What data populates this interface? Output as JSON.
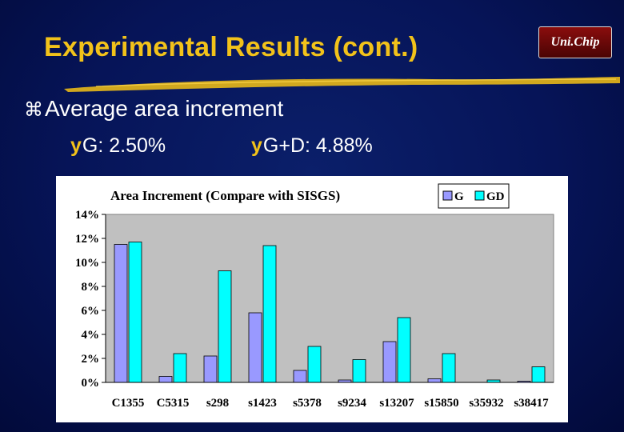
{
  "slide": {
    "title": "Experimental Results (cont.)",
    "logo_text": "Uni.Chip",
    "bullet_main": "Average area increment",
    "bullet_main_marker": "⌘",
    "sub_bullets": [
      {
        "marker": "y",
        "text": "G: 2.50%"
      },
      {
        "marker": "y",
        "text": "G+D: 4.88%"
      }
    ]
  },
  "colors": {
    "title": "#f2c21a",
    "background": "#061458",
    "series_g": "#9999ff",
    "series_gd": "#00ffff",
    "plot_area": "#c0c0c0"
  },
  "chart_data": {
    "type": "bar",
    "title": "Area Increment (Compare with SISGS)",
    "xlabel": "",
    "ylabel": "",
    "categories": [
      "C1355",
      "C5315",
      "s298",
      "s1423",
      "s5378",
      "s9234",
      "s13207",
      "s15850",
      "s35932",
      "s38417"
    ],
    "series": [
      {
        "name": "G",
        "values": [
          11.5,
          0.5,
          2.2,
          5.8,
          1.0,
          0.2,
          3.4,
          0.3,
          0.0,
          0.1
        ]
      },
      {
        "name": "GD",
        "values": [
          11.7,
          2.4,
          9.3,
          11.4,
          3.0,
          1.9,
          5.4,
          2.4,
          0.2,
          1.3
        ]
      }
    ],
    "ylim": [
      0,
      14
    ],
    "yticks": [
      "0%",
      "2%",
      "4%",
      "6%",
      "8%",
      "10%",
      "12%",
      "14%"
    ],
    "grid": false,
    "legend_position": "top-right"
  }
}
